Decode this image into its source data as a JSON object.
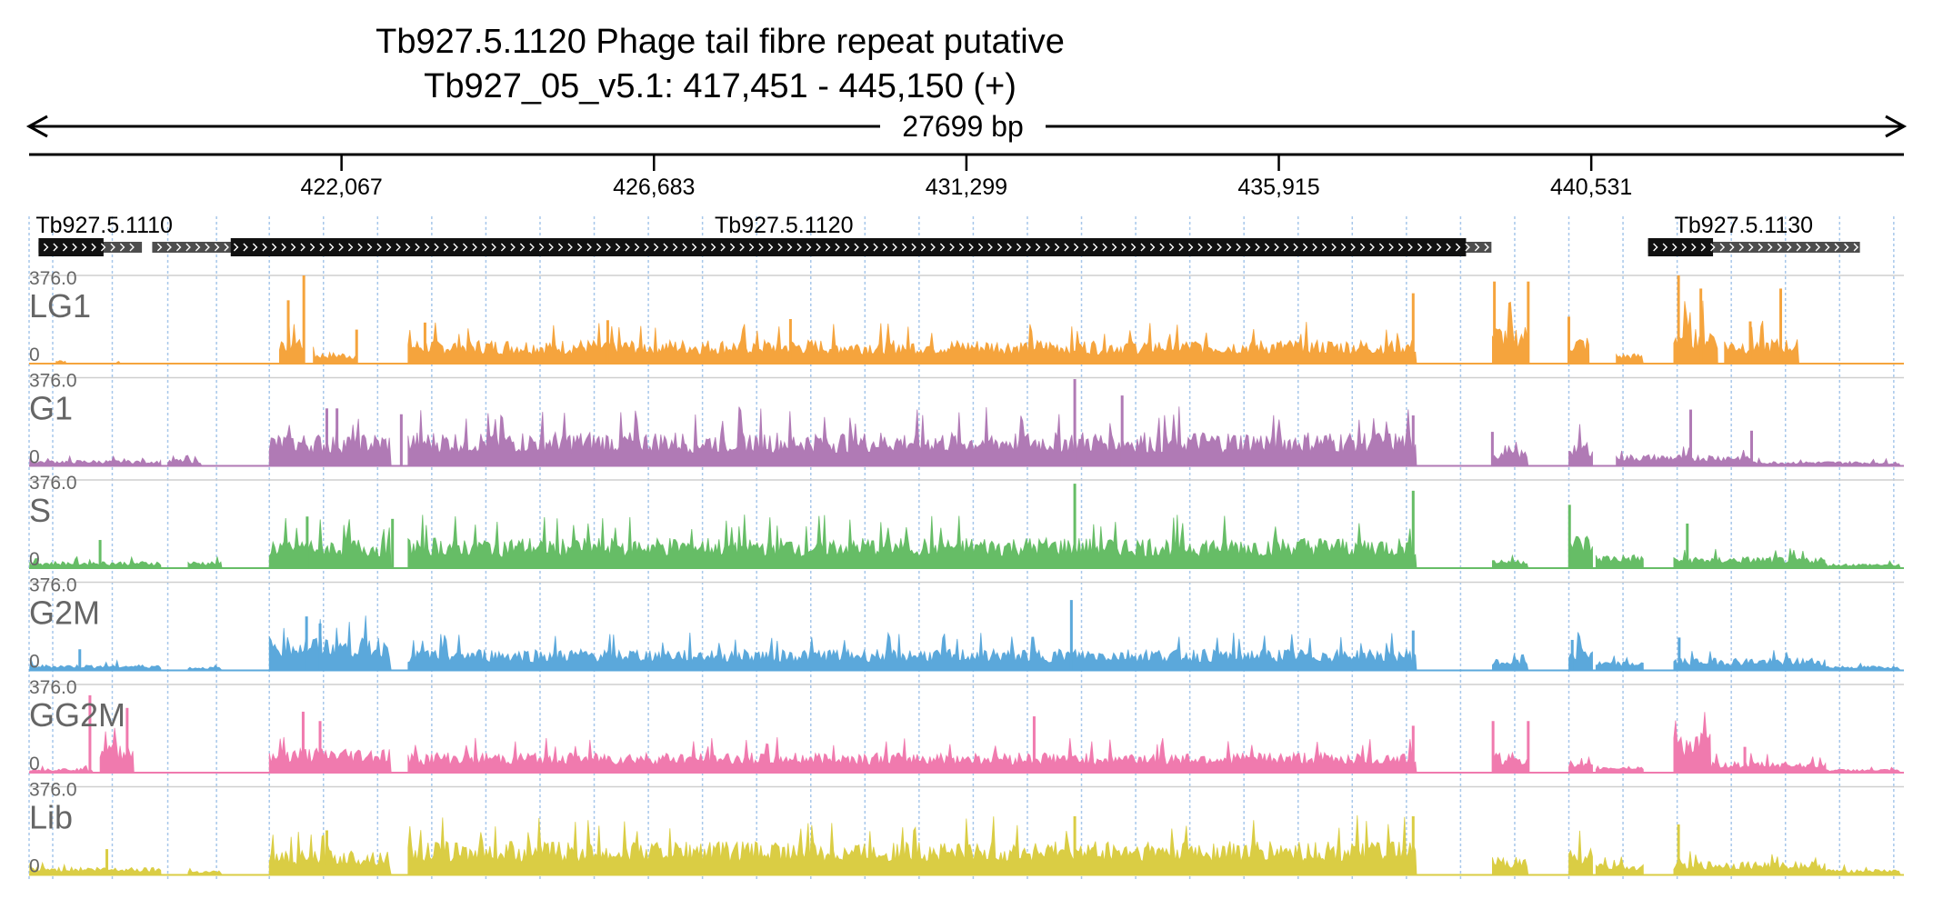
{
  "figure": {
    "title_line1": "Tb927.5.1120  Phage tail fibre repeat  putative",
    "title_line2": "Tb927_05_v5.1: 417,451 - 445,150 (+)",
    "span_label": "27699 bp"
  },
  "chart_data": {
    "type": "area",
    "chromosome": "Tb927_05_v5.1",
    "region": [
      417451,
      445150
    ],
    "xlim": [
      417451,
      445150
    ],
    "ylim": [
      0,
      376.0
    ],
    "y_top_label": "376.0",
    "y_bottom_label": "0",
    "x_ticks": [
      422067,
      426683,
      431299,
      435915,
      440531
    ],
    "x_tick_labels": [
      "422,067",
      "426,683",
      "431,299",
      "435,915",
      "440,531"
    ],
    "genes": [
      {
        "name": "Tb927.5.1110",
        "start": 417591,
        "end": 418551,
        "utr_start": 418551,
        "utr_end": 419118,
        "label_pos": 417550
      },
      {
        "name": "Tb927.5.1120",
        "start": 420430,
        "end": 438681,
        "utr_start": 419270,
        "utr_end": 439056,
        "label_pos": 427580
      },
      {
        "name": "Tb927.5.1130",
        "start": 441370,
        "end": 442330,
        "utr_start": 442330,
        "utr_end": 444500,
        "label_pos": 441760
      }
    ],
    "grid_positions": [
      417800,
      418680,
      419500,
      420220,
      421000,
      421800,
      422600,
      423400,
      424200,
      425000,
      425800,
      426600,
      427400,
      428200,
      429000,
      429800,
      430600,
      431400,
      432200,
      433000,
      433800,
      434600,
      435400,
      436200,
      437000,
      437800,
      438600,
      439400,
      440200,
      441000,
      441800,
      442600,
      443400,
      444200,
      445000
    ],
    "series": [
      {
        "name": "LG1",
        "color": "#f5a43d",
        "segments": [
          {
            "from": 417461,
            "to": 417700,
            "base": 0
          },
          {
            "from": 417850,
            "to": 418000,
            "base": 15
          },
          {
            "from": 418750,
            "to": 418800,
            "base": 12
          },
          {
            "from": 421150,
            "to": 421500,
            "base": 130
          },
          {
            "from": 421650,
            "to": 422300,
            "base": 50
          },
          {
            "from": 423050,
            "to": 437950,
            "base": 105
          },
          {
            "from": 439070,
            "to": 439600,
            "base": 170
          },
          {
            "from": 440200,
            "to": 440500,
            "base": 120
          },
          {
            "from": 440900,
            "to": 441300,
            "base": 45
          },
          {
            "from": 441750,
            "to": 442400,
            "base": 170
          },
          {
            "from": 442500,
            "to": 443600,
            "base": 110
          }
        ],
        "spikes": [
          {
            "pos": 421280,
            "value": 270
          },
          {
            "pos": 421510,
            "value": 376
          },
          {
            "pos": 422290,
            "value": 145
          },
          {
            "pos": 423300,
            "value": 175
          },
          {
            "pos": 426000,
            "value": 185
          },
          {
            "pos": 428700,
            "value": 190
          },
          {
            "pos": 437900,
            "value": 300
          },
          {
            "pos": 439100,
            "value": 350
          },
          {
            "pos": 439600,
            "value": 350
          },
          {
            "pos": 440200,
            "value": 200
          },
          {
            "pos": 441820,
            "value": 376
          },
          {
            "pos": 442150,
            "value": 320
          },
          {
            "pos": 442880,
            "value": 180
          },
          {
            "pos": 443330,
            "value": 320
          }
        ]
      },
      {
        "name": "G1",
        "color": "#b07ab5",
        "segments": [
          {
            "from": 417461,
            "to": 419400,
            "base": 25
          },
          {
            "from": 419500,
            "to": 420000,
            "base": 30
          },
          {
            "from": 421000,
            "to": 422800,
            "base": 140
          },
          {
            "from": 423050,
            "to": 437950,
            "base": 150
          },
          {
            "from": 439070,
            "to": 439600,
            "base": 70
          },
          {
            "from": 440200,
            "to": 440550,
            "base": 110
          },
          {
            "from": 440900,
            "to": 442900,
            "base": 50
          },
          {
            "from": 442900,
            "to": 445100,
            "base": 20
          }
        ],
        "spikes": [
          {
            "pos": 421850,
            "value": 245
          },
          {
            "pos": 422000,
            "value": 245
          },
          {
            "pos": 422950,
            "value": 220
          },
          {
            "pos": 432900,
            "value": 370
          },
          {
            "pos": 433600,
            "value": 300
          },
          {
            "pos": 437900,
            "value": 215
          },
          {
            "pos": 439070,
            "value": 145
          },
          {
            "pos": 442000,
            "value": 240
          },
          {
            "pos": 442900,
            "value": 150
          }
        ]
      },
      {
        "name": "S",
        "color": "#66bd66",
        "segments": [
          {
            "from": 417461,
            "to": 419400,
            "base": 30
          },
          {
            "from": 419800,
            "to": 420300,
            "base": 30
          },
          {
            "from": 421000,
            "to": 422800,
            "base": 130
          },
          {
            "from": 423050,
            "to": 437950,
            "base": 135
          },
          {
            "from": 439070,
            "to": 439600,
            "base": 40
          },
          {
            "from": 440200,
            "to": 440550,
            "base": 150
          },
          {
            "from": 440600,
            "to": 441300,
            "base": 60
          },
          {
            "from": 441750,
            "to": 444000,
            "base": 50
          },
          {
            "from": 444000,
            "to": 445100,
            "base": 20
          }
        ],
        "spikes": [
          {
            "pos": 418500,
            "value": 120
          },
          {
            "pos": 421560,
            "value": 220
          },
          {
            "pos": 422820,
            "value": 210
          },
          {
            "pos": 432900,
            "value": 360
          },
          {
            "pos": 437900,
            "value": 330
          },
          {
            "pos": 440210,
            "value": 270
          },
          {
            "pos": 441950,
            "value": 190
          }
        ]
      },
      {
        "name": "G2M",
        "color": "#5ba8db",
        "segments": [
          {
            "from": 417461,
            "to": 419400,
            "base": 25
          },
          {
            "from": 419800,
            "to": 420300,
            "base": 15
          },
          {
            "from": 421000,
            "to": 422800,
            "base": 150
          },
          {
            "from": 423050,
            "to": 437950,
            "base": 95
          },
          {
            "from": 439070,
            "to": 439600,
            "base": 50
          },
          {
            "from": 440200,
            "to": 440550,
            "base": 110
          },
          {
            "from": 440600,
            "to": 441300,
            "base": 40
          },
          {
            "from": 441750,
            "to": 444000,
            "base": 55
          },
          {
            "from": 444000,
            "to": 445100,
            "base": 20
          }
        ],
        "spikes": [
          {
            "pos": 418200,
            "value": 90
          },
          {
            "pos": 421550,
            "value": 230
          },
          {
            "pos": 421750,
            "value": 200
          },
          {
            "pos": 432850,
            "value": 300
          },
          {
            "pos": 437900,
            "value": 170
          },
          {
            "pos": 440250,
            "value": 130
          },
          {
            "pos": 441830,
            "value": 140
          }
        ]
      },
      {
        "name": "GG2M",
        "color": "#f07aae",
        "segments": [
          {
            "from": 417461,
            "to": 418400,
            "base": 20
          },
          {
            "from": 418500,
            "to": 419000,
            "base": 140
          },
          {
            "from": 421000,
            "to": 422800,
            "base": 110
          },
          {
            "from": 423050,
            "to": 437950,
            "base": 90
          },
          {
            "from": 439070,
            "to": 439600,
            "base": 90
          },
          {
            "from": 440200,
            "to": 440550,
            "base": 40
          },
          {
            "from": 440600,
            "to": 441300,
            "base": 30
          },
          {
            "from": 441750,
            "to": 442300,
            "base": 180
          },
          {
            "from": 442300,
            "to": 444000,
            "base": 50
          },
          {
            "from": 444000,
            "to": 445100,
            "base": 15
          }
        ],
        "spikes": [
          {
            "pos": 418350,
            "value": 330
          },
          {
            "pos": 418900,
            "value": 276
          },
          {
            "pos": 421500,
            "value": 260
          },
          {
            "pos": 421750,
            "value": 220
          },
          {
            "pos": 432300,
            "value": 240
          },
          {
            "pos": 437900,
            "value": 200
          },
          {
            "pos": 439080,
            "value": 220
          },
          {
            "pos": 439600,
            "value": 220
          },
          {
            "pos": 442800,
            "value": 110
          }
        ]
      },
      {
        "name": "Lib",
        "color": "#dacd44",
        "segments": [
          {
            "from": 417461,
            "to": 419400,
            "base": 35
          },
          {
            "from": 419800,
            "to": 420300,
            "base": 20
          },
          {
            "from": 421000,
            "to": 422800,
            "base": 110
          },
          {
            "from": 423050,
            "to": 437950,
            "base": 150
          },
          {
            "from": 439070,
            "to": 439600,
            "base": 80
          },
          {
            "from": 440200,
            "to": 440550,
            "base": 120
          },
          {
            "from": 440600,
            "to": 441300,
            "base": 50
          },
          {
            "from": 441750,
            "to": 444000,
            "base": 60
          },
          {
            "from": 444000,
            "to": 445100,
            "base": 25
          }
        ],
        "spikes": [
          {
            "pos": 418600,
            "value": 110
          },
          {
            "pos": 421850,
            "value": 190
          },
          {
            "pos": 432900,
            "value": 250
          },
          {
            "pos": 437900,
            "value": 250
          },
          {
            "pos": 441820,
            "value": 215
          }
        ]
      }
    ]
  }
}
